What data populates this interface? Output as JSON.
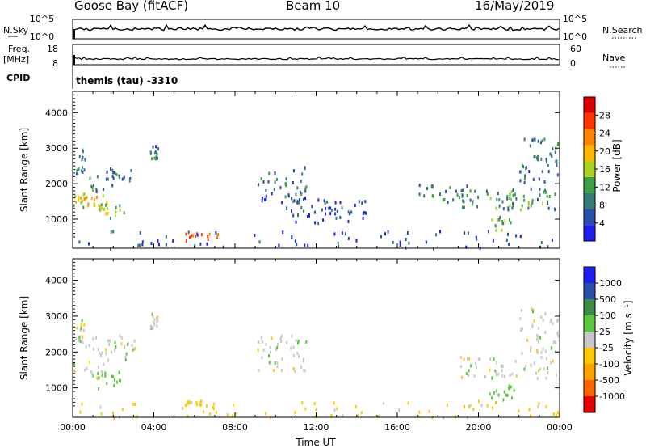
{
  "header": {
    "station": "Goose Bay (fitACF)",
    "beam": "Beam 10",
    "date": "16/May/2019"
  },
  "strip_labels": {
    "nsky": "N.Sky",
    "nsky_ticks": [
      "10^5",
      "10^0"
    ],
    "freq": "Freq.",
    "freq_unit": "[MHz]",
    "freq_ticks": [
      "18",
      "8"
    ],
    "cpid": "CPID",
    "cpid_value": "themis (tau) -3310",
    "nsearch": "N.Search",
    "nsearch_ticks": [
      "10^5",
      "10^0"
    ],
    "nave": "Nave",
    "nave_ticks": [
      "60",
      "0"
    ]
  },
  "colors": {
    "power": [
      "#1e1ef0",
      "#2850a8",
      "#347a78",
      "#3ca046",
      "#aad21e",
      "#ffb400",
      "#ff8200",
      "#ff3200",
      "#dc0000"
    ],
    "velocity": [
      "#1e1ef0",
      "#2850a8",
      "#3c8c46",
      "#5ac83c",
      "#c8c8c8",
      "#ffc800",
      "#ffa000",
      "#ff6400",
      "#e60000"
    ]
  },
  "chart_data": [
    {
      "type": "heatmap",
      "name": "power",
      "xlabel": "",
      "ylabel": "Slant Range [km]",
      "xlim": [
        0,
        24
      ],
      "ylim": [
        180,
        4600
      ],
      "yticks": [
        "1000",
        "2000",
        "3000",
        "4000"
      ],
      "colorbar_label": "Power [dB]",
      "colorbar_ticks": [
        "4",
        "8",
        "12",
        "16",
        "20",
        "24",
        "28"
      ],
      "colorbar_range": [
        0,
        32
      ],
      "regions": [
        {
          "t0": 0.0,
          "t1": 1.7,
          "r0": 1300,
          "r1": 1800,
          "v": 16
        },
        {
          "t0": 0.1,
          "t1": 1.2,
          "r0": 1400,
          "r1": 1700,
          "v": 20
        },
        {
          "t0": 1.2,
          "t1": 2.5,
          "r0": 1000,
          "r1": 1500,
          "v": 14
        },
        {
          "t0": 0.6,
          "t1": 2.3,
          "r0": 1800,
          "r1": 2300,
          "v": 10
        },
        {
          "t0": 1.6,
          "t1": 3.1,
          "r0": 2100,
          "r1": 2500,
          "v": 8
        },
        {
          "t0": 0.1,
          "t1": 0.6,
          "r0": 2300,
          "r1": 3000,
          "v": 8
        },
        {
          "t0": 3.8,
          "t1": 4.2,
          "r0": 2700,
          "r1": 3100,
          "v": 7
        },
        {
          "t0": 5.5,
          "t1": 7.2,
          "r0": 420,
          "r1": 650,
          "v": 24
        },
        {
          "t0": 9.1,
          "t1": 11.5,
          "r0": 1500,
          "r1": 2500,
          "v": 7
        },
        {
          "t0": 10.5,
          "t1": 14.5,
          "r0": 900,
          "r1": 1600,
          "v": 6
        },
        {
          "t0": 17.0,
          "t1": 19.5,
          "r0": 1500,
          "r1": 2000,
          "v": 9
        },
        {
          "t0": 19.0,
          "t1": 23.8,
          "r0": 1300,
          "r1": 1900,
          "v": 10
        },
        {
          "t0": 21.5,
          "t1": 23.5,
          "r0": 1400,
          "r1": 1750,
          "v": 14
        },
        {
          "t0": 22.0,
          "t1": 23.9,
          "r0": 2000,
          "r1": 3300,
          "v": 8
        },
        {
          "t0": 20.5,
          "t1": 21.8,
          "r0": 700,
          "r1": 1100,
          "v": 13
        },
        {
          "t0": 0.0,
          "t1": 24.0,
          "r0": 200,
          "r1": 700,
          "v": 5
        }
      ]
    },
    {
      "type": "heatmap",
      "name": "velocity",
      "xlabel": "Time UT",
      "ylabel": "Slant Range [km]",
      "xlim": [
        0,
        24
      ],
      "ylim": [
        180,
        4600
      ],
      "xticks": [
        "00:00",
        "04:00",
        "08:00",
        "12:00",
        "16:00",
        "20:00",
        "00:00"
      ],
      "yticks": [
        "1000",
        "2000",
        "3000",
        "4000"
      ],
      "colorbar_label": "Velocity [m s⁻¹]",
      "colorbar_ticks": [
        "1000",
        "500",
        "100",
        "25",
        "-25",
        "-100",
        "-500",
        "-1000"
      ],
      "regions": [
        {
          "t0": 0.0,
          "t1": 1.7,
          "r0": 1300,
          "r1": 1800,
          "v": 0
        },
        {
          "t0": 1.2,
          "t1": 2.5,
          "r0": 1000,
          "r1": 1500,
          "v": 60
        },
        {
          "t0": 0.6,
          "t1": 3.1,
          "r0": 1800,
          "r1": 2500,
          "v": 0
        },
        {
          "t0": 0.1,
          "t1": 0.6,
          "r0": 2300,
          "r1": 3000,
          "v": 0
        },
        {
          "t0": 3.8,
          "t1": 4.2,
          "r0": 2700,
          "r1": 3100,
          "v": 0
        },
        {
          "t0": 5.5,
          "t1": 7.2,
          "r0": 420,
          "r1": 650,
          "v": -60
        },
        {
          "t0": 9.1,
          "t1": 11.5,
          "r0": 1500,
          "r1": 2500,
          "v": 0
        },
        {
          "t0": 19.0,
          "t1": 23.8,
          "r0": 1300,
          "r1": 1900,
          "v": 0
        },
        {
          "t0": 22.0,
          "t1": 23.9,
          "r0": 2000,
          "r1": 3300,
          "v": 0
        },
        {
          "t0": 20.5,
          "t1": 21.8,
          "r0": 700,
          "r1": 1100,
          "v": 60
        },
        {
          "t0": 0.0,
          "t1": 24.0,
          "r0": 200,
          "r1": 700,
          "v": -50
        }
      ]
    }
  ]
}
